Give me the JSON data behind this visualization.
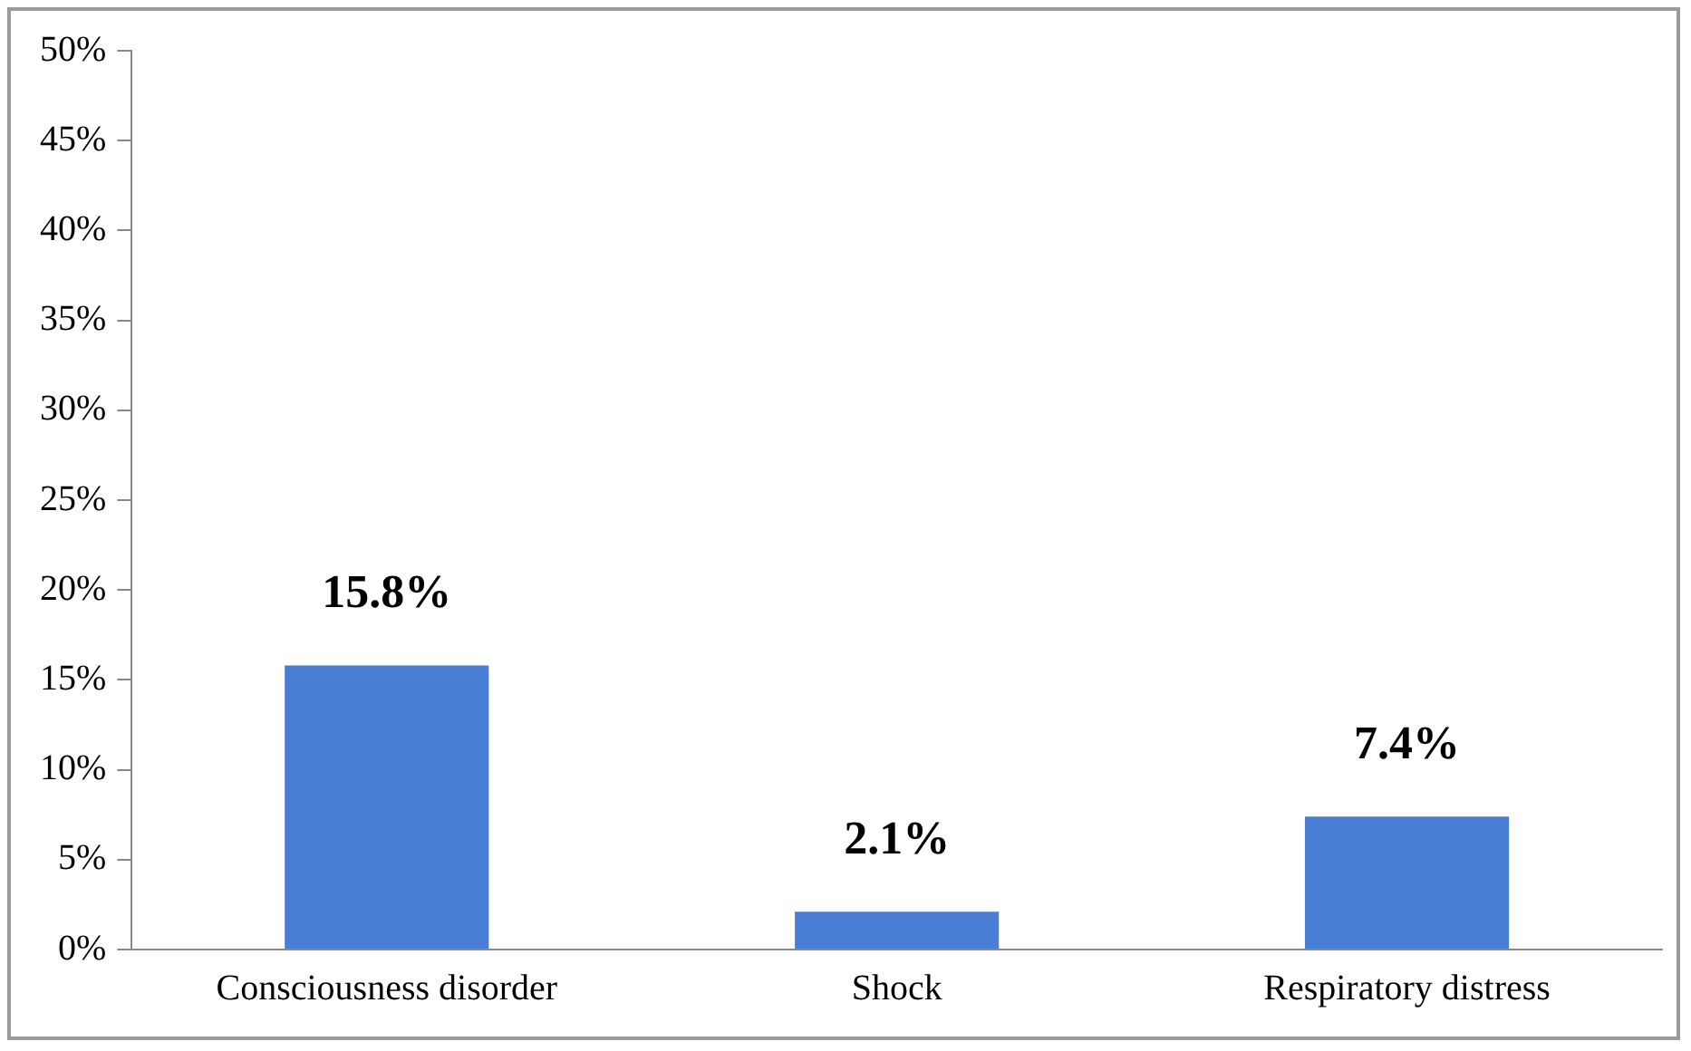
{
  "chart_data": {
    "type": "bar",
    "categories": [
      "Consciousness disorder",
      "Shock",
      "Respiratory distress"
    ],
    "values": [
      15.8,
      2.1,
      7.4
    ],
    "value_labels": [
      "15.8%",
      "2.1%",
      "7.4%"
    ],
    "color": "#4a7ed4",
    "ylim": [
      0,
      50
    ],
    "yticks": [
      {
        "value": 0,
        "label": "0%"
      },
      {
        "value": 5,
        "label": "5%"
      },
      {
        "value": 10,
        "label": "10%"
      },
      {
        "value": 15,
        "label": "15%"
      },
      {
        "value": 20,
        "label": "20%"
      },
      {
        "value": 25,
        "label": "25%"
      },
      {
        "value": 30,
        "label": "30%"
      },
      {
        "value": 35,
        "label": "35%"
      },
      {
        "value": 40,
        "label": "40%"
      },
      {
        "value": 45,
        "label": "45%"
      },
      {
        "value": 50,
        "label": "50%"
      }
    ],
    "grid": false,
    "legend": false
  }
}
